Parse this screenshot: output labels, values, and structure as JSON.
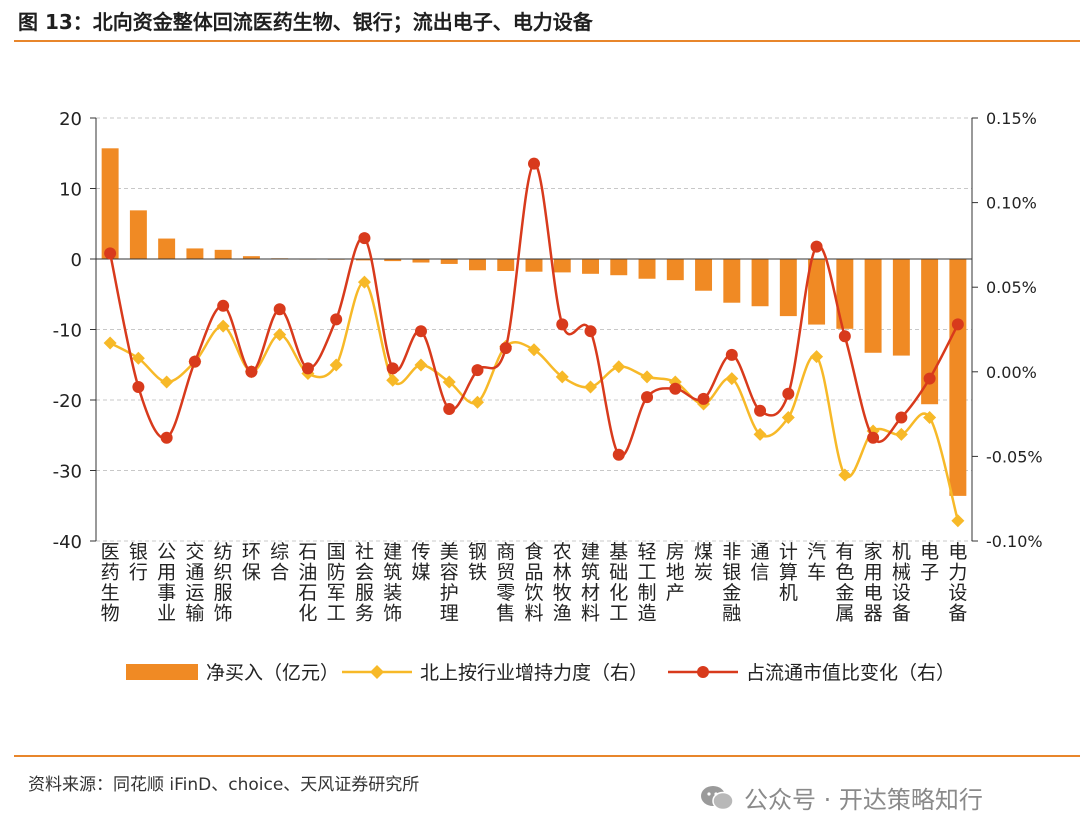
{
  "title": "图 13：北向资金整体回流医药生物、银行；流出电子、电力设备",
  "source": "资料来源：同花顺 iFinD、choice、天风证券研究所",
  "watermark": "公众号 · 开达策略知行",
  "colors": {
    "bar": "#f08a24",
    "line_holding": "#f7b928",
    "line_ratio": "#d83a1c",
    "accent_rule": "#e8862b"
  },
  "chart_data": {
    "type": "bar",
    "categories": [
      "医药生物",
      "银行",
      "公用事业",
      "交通运输",
      "纺织服饰",
      "环保",
      "综合",
      "石油石化",
      "国防军工",
      "社会服务",
      "建筑装饰",
      "传媒",
      "美容护理",
      "钢铁",
      "商贸零售",
      "食品饮料",
      "农林牧渔",
      "建筑材料",
      "基础化工",
      "轻工制造",
      "房地产",
      "煤炭",
      "非银金融",
      "通信",
      "计算机",
      "汽车",
      "有色金属",
      "家用电器",
      "机械设备",
      "电子",
      "电力设备"
    ],
    "series": [
      {
        "name": "净买入（亿元）",
        "type": "bar",
        "axis": "left",
        "values": [
          15.7,
          6.9,
          2.9,
          1.5,
          1.3,
          0.4,
          0.1,
          0.0,
          -0.1,
          -0.2,
          -0.3,
          -0.5,
          -0.7,
          -1.6,
          -1.7,
          -1.8,
          -1.9,
          -2.1,
          -2.3,
          -2.8,
          -3.0,
          -4.5,
          -6.2,
          -6.7,
          -8.1,
          -9.3,
          -9.9,
          -13.3,
          -13.7,
          -20.6,
          -33.6
        ]
      },
      {
        "name": "北上按行业增持力度（右）",
        "type": "line",
        "axis": "right",
        "values": [
          0.017,
          0.008,
          -0.006,
          0.006,
          0.027,
          0.0,
          0.022,
          -0.001,
          0.004,
          0.053,
          -0.005,
          0.004,
          -0.006,
          -0.018,
          0.015,
          0.013,
          -0.003,
          -0.009,
          0.003,
          -0.003,
          -0.006,
          -0.019,
          -0.004,
          -0.037,
          -0.027,
          0.009,
          -0.061,
          -0.035,
          -0.037,
          -0.027,
          -0.088
        ]
      },
      {
        "name": "占流通市值比变化（右）",
        "type": "line",
        "axis": "right",
        "values": [
          0.07,
          -0.009,
          -0.039,
          0.006,
          0.039,
          0.0,
          0.037,
          0.002,
          0.031,
          0.079,
          0.002,
          0.024,
          -0.022,
          0.001,
          0.014,
          0.123,
          0.028,
          0.024,
          -0.049,
          -0.015,
          -0.01,
          -0.016,
          0.01,
          -0.023,
          -0.013,
          0.074,
          0.021,
          -0.039,
          -0.027,
          -0.004,
          0.028
        ]
      }
    ],
    "yleft": {
      "min": -40,
      "max": 20,
      "ticks": [
        20,
        10,
        0,
        -10,
        -20,
        -30,
        -40
      ]
    },
    "yright": {
      "min": -0.001,
      "max": 0.0015,
      "ticks": [
        "0.15%",
        "0.10%",
        "0.05%",
        "0.00%",
        "-0.05%",
        "-0.10%"
      ]
    },
    "grid": true,
    "legend_position": "bottom"
  }
}
